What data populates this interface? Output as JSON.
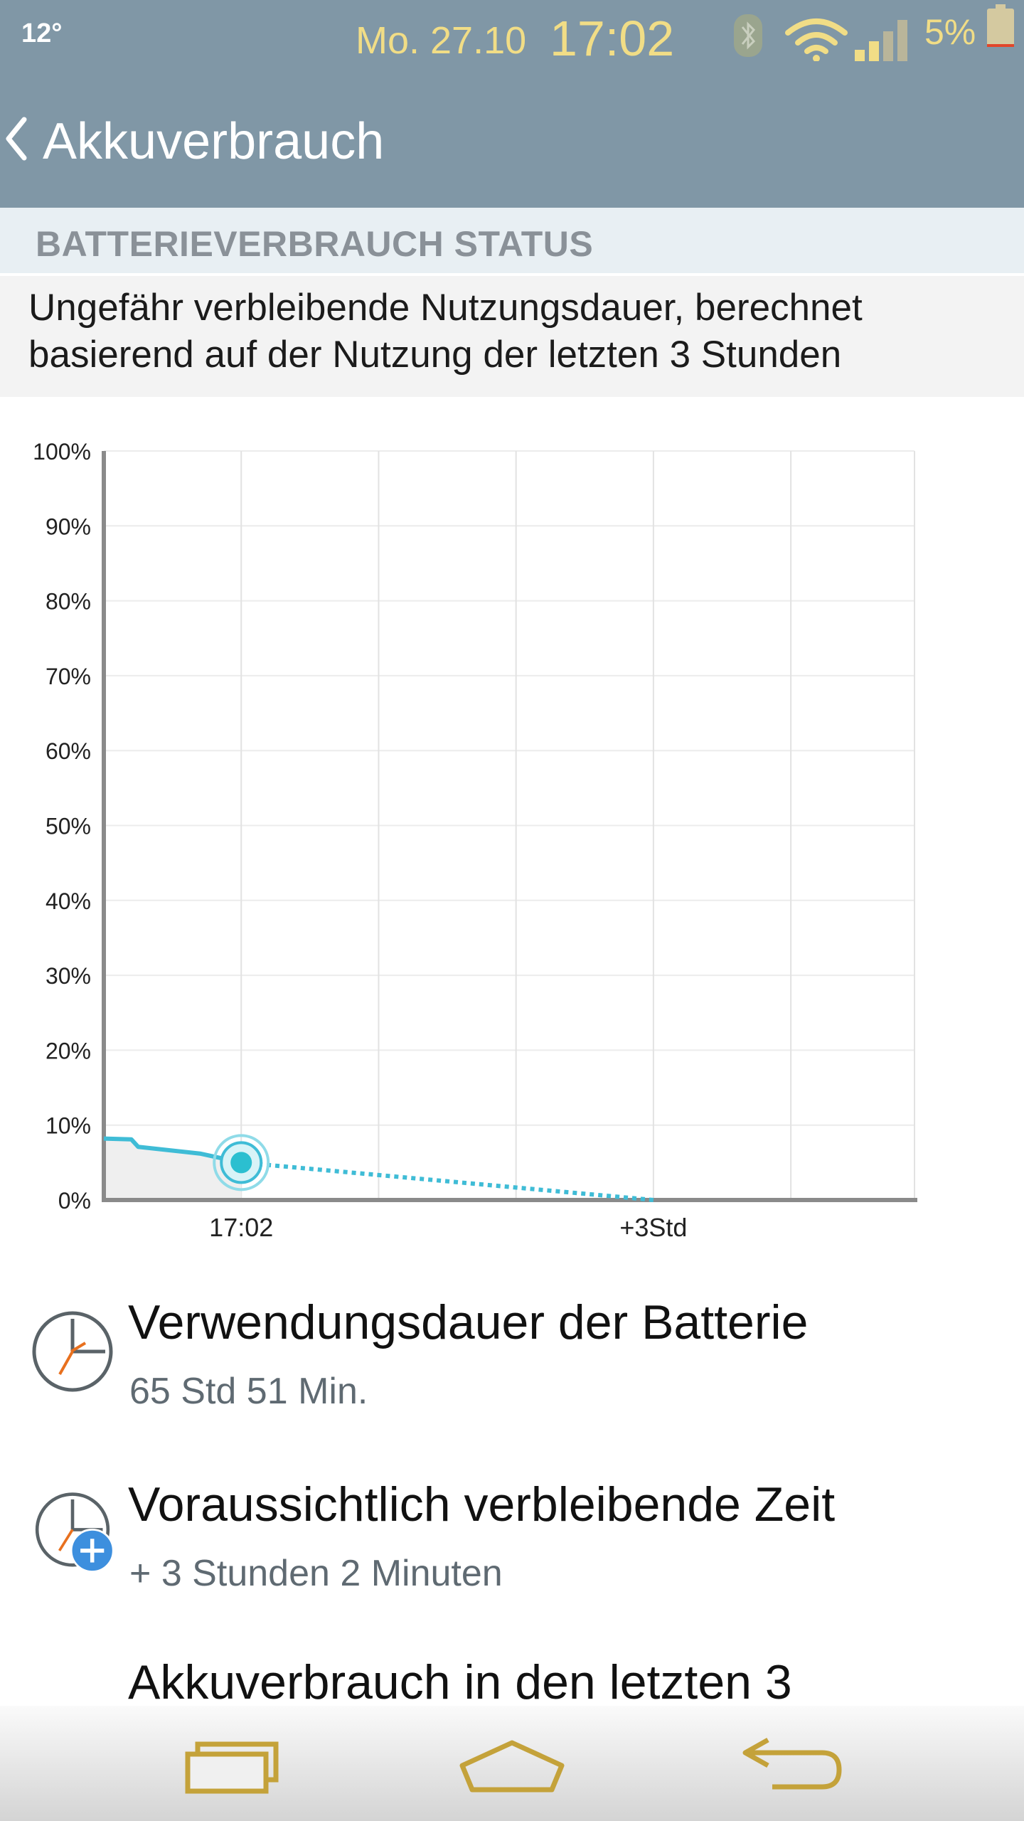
{
  "status_bar": {
    "temperature": "12°",
    "date": "Mo. 27.10",
    "time": "17:02",
    "battery_percent": "5%",
    "icons": [
      "bluetooth-icon",
      "wifi-icon",
      "signal-icon",
      "battery-icon"
    ],
    "text_color": "#f1dd86"
  },
  "app_bar": {
    "title": "Akkuverbrauch",
    "background": "#8097a6"
  },
  "section": {
    "title": "BATTERIEVERBRAUCH STATUS",
    "description_line1": "Ungefähr verbleibende Nutzungsdauer, berechnet",
    "description_line2": "basierend auf der Nutzung der letzten 3 Stunden"
  },
  "chart_data": {
    "type": "line",
    "y_ticks": [
      "100%",
      "90%",
      "80%",
      "70%",
      "60%",
      "50%",
      "40%",
      "30%",
      "20%",
      "10%",
      "0%"
    ],
    "ylim": [
      0,
      100
    ],
    "x_tick_labels": [
      "17:02",
      "+3Std"
    ],
    "grid": true,
    "line_color": "#3fbcd6",
    "series": [
      {
        "values": [
          {
            "h": -1.0,
            "y": 8.2
          },
          {
            "h": -0.8,
            "y": 8.1
          },
          {
            "h": -0.75,
            "y": 7.1
          },
          {
            "h": -0.3,
            "y": 6.2
          },
          {
            "h": 0.0,
            "y": 5.0
          }
        ]
      },
      {
        "values": [
          {
            "h": 0.0,
            "y": 5.0
          },
          {
            "h": 3.0,
            "y": 0.0
          }
        ]
      }
    ],
    "current_point": {
      "h": 0.0,
      "y": 5.0
    }
  },
  "list": [
    {
      "title": "Verwendungsdauer der Batterie",
      "subtitle": "65 Std 51 Min.",
      "icon": "clock-icon"
    },
    {
      "title": "Voraussichtlich verbleibende Zeit",
      "subtitle": "+ 3 Stunden 2 Minuten",
      "icon": "clock-plus-icon"
    },
    {
      "title": "Akkuverbrauch in den letzten 3"
    }
  ],
  "nav_bar": {
    "icons": [
      "recent-apps-icon",
      "home-icon",
      "back-icon"
    ],
    "icon_color": "#c4a23a"
  }
}
